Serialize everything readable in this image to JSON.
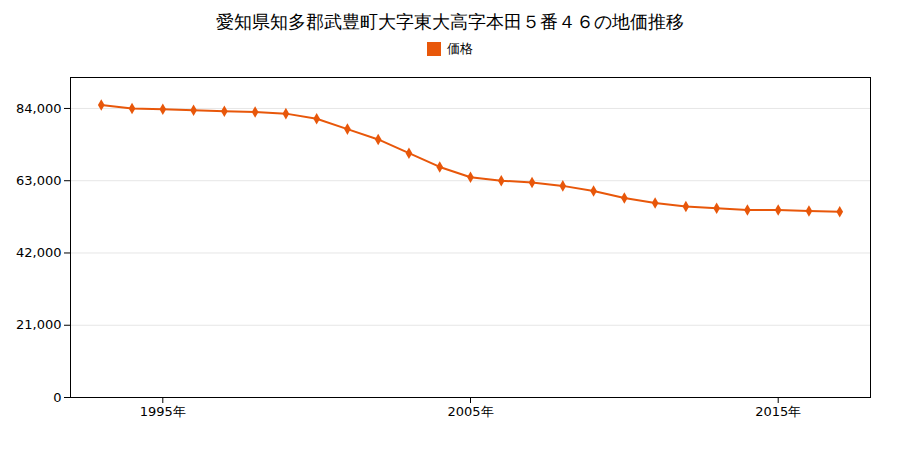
{
  "chart_data": {
    "type": "line",
    "title": "愛知県知多郡武豊町大字東大高字本田５番４６の地価推移",
    "x": [
      1993,
      1994,
      1995,
      1996,
      1997,
      1998,
      1999,
      2000,
      2001,
      2002,
      2003,
      2004,
      2005,
      2006,
      2007,
      2008,
      2009,
      2010,
      2011,
      2012,
      2013,
      2014,
      2015,
      2016,
      2017
    ],
    "series": [
      {
        "name": "価格",
        "color": "#E8570A",
        "marker": "diamond",
        "values": [
          85000,
          84000,
          83800,
          83500,
          83200,
          83000,
          82500,
          81000,
          78000,
          75000,
          71000,
          67000,
          64000,
          63000,
          62500,
          61500,
          60000,
          58000,
          56500,
          55500,
          55000,
          54500,
          54500,
          54200,
          54000
        ]
      }
    ],
    "xlim": [
      1992,
      2018
    ],
    "xticks": [
      {
        "value": 1995,
        "label": "1995年"
      },
      {
        "value": 2005,
        "label": "2005年"
      },
      {
        "value": 2015,
        "label": "2015年"
      }
    ],
    "ylim": [
      0,
      93000
    ],
    "yticks": [
      0,
      {
        "value": 21000,
        "label": "21,000"
      },
      {
        "value": 42000,
        "label": "42,000"
      },
      {
        "value": 63000,
        "label": "63,000"
      },
      {
        "value": 84000,
        "label": "84,000"
      }
    ],
    "grid": "y",
    "legend": "top"
  }
}
